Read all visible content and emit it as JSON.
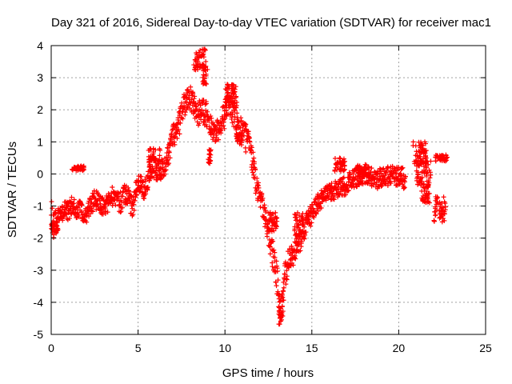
{
  "chart_data": {
    "type": "scatter",
    "title": "Day 321 of 2016, Sidereal Day-to-day VTEC variation (SDTVAR) for receiver mac1",
    "xlabel": "GPS time / hours",
    "ylabel": "SDTVAR / TECUs",
    "xlim": [
      0,
      25
    ],
    "ylim": [
      -5,
      4
    ],
    "xticks": [
      "0",
      "5",
      "10",
      "15",
      "20",
      "25"
    ],
    "yticks": [
      "-5",
      "-4",
      "-3",
      "-2",
      "-1",
      "0",
      "1",
      "2",
      "3",
      "4"
    ],
    "grid": true,
    "marker": "plus",
    "series_color": "#ff0000",
    "series": [
      {
        "name": "SDTVAR",
        "trace": [
          [
            0.0,
            -1.2,
            0.45
          ],
          [
            0.1,
            -1.5,
            0.5
          ],
          [
            0.2,
            -1.6,
            0.4
          ],
          [
            0.4,
            -1.3,
            0.35
          ],
          [
            0.6,
            -1.2,
            0.3
          ],
          [
            0.8,
            -1.1,
            0.3
          ],
          [
            1.0,
            -1.2,
            0.3
          ],
          [
            1.2,
            -1.0,
            0.3
          ],
          [
            1.4,
            -1.1,
            0.3
          ],
          [
            1.6,
            -1.1,
            0.3
          ],
          [
            1.8,
            -1.2,
            0.25
          ],
          [
            2.0,
            -1.3,
            0.25
          ],
          [
            2.2,
            -1.0,
            0.3
          ],
          [
            2.5,
            -0.8,
            0.3
          ],
          [
            2.8,
            -0.9,
            0.3
          ],
          [
            3.0,
            -1.0,
            0.3
          ],
          [
            3.3,
            -0.9,
            0.3
          ],
          [
            3.5,
            -0.7,
            0.3
          ],
          [
            3.8,
            -0.8,
            0.3
          ],
          [
            4.0,
            -0.9,
            0.35
          ],
          [
            4.3,
            -0.6,
            0.35
          ],
          [
            4.5,
            -0.8,
            0.35
          ],
          [
            4.7,
            -1.1,
            0.4
          ],
          [
            4.9,
            -0.4,
            0.3
          ],
          [
            5.1,
            -0.3,
            0.3
          ],
          [
            5.4,
            -0.5,
            0.35
          ],
          [
            5.6,
            -0.1,
            0.3
          ],
          [
            5.8,
            0.3,
            0.3
          ],
          [
            6.0,
            0.2,
            0.3
          ],
          [
            6.2,
            0.1,
            0.35
          ],
          [
            6.5,
            0.2,
            0.3
          ],
          [
            6.8,
            0.7,
            0.35
          ],
          [
            7.0,
            1.2,
            0.35
          ],
          [
            7.3,
            1.4,
            0.4
          ],
          [
            7.5,
            2.0,
            0.4
          ],
          [
            7.8,
            2.3,
            0.4
          ],
          [
            8.0,
            2.4,
            0.35
          ],
          [
            8.2,
            2.1,
            0.4
          ],
          [
            8.5,
            1.9,
            0.4
          ],
          [
            8.8,
            2.0,
            0.45
          ],
          [
            9.0,
            1.8,
            0.4
          ],
          [
            9.2,
            1.4,
            0.35
          ],
          [
            9.4,
            1.3,
            0.3
          ],
          [
            9.6,
            1.4,
            0.35
          ],
          [
            9.8,
            1.6,
            0.4
          ],
          [
            10.0,
            1.9,
            0.45
          ],
          [
            10.2,
            2.2,
            0.35
          ],
          [
            10.4,
            2.0,
            0.4
          ],
          [
            10.6,
            1.8,
            0.45
          ],
          [
            10.8,
            1.5,
            0.4
          ],
          [
            11.0,
            1.3,
            0.4
          ],
          [
            11.2,
            1.1,
            0.45
          ],
          [
            11.4,
            0.9,
            0.4
          ],
          [
            11.6,
            0.4,
            0.35
          ],
          [
            11.8,
            -0.3,
            0.4
          ],
          [
            12.0,
            -0.7,
            0.35
          ],
          [
            12.2,
            -1.1,
            0.35
          ],
          [
            12.4,
            -1.6,
            0.35
          ],
          [
            12.6,
            -2.1,
            0.4
          ],
          [
            12.8,
            -2.6,
            0.45
          ],
          [
            13.0,
            -3.3,
            0.5
          ],
          [
            13.1,
            -4.0,
            0.4
          ],
          [
            13.2,
            -4.3,
            0.35
          ],
          [
            13.35,
            -3.6,
            0.45
          ],
          [
            13.5,
            -3.0,
            0.45
          ],
          [
            13.7,
            -2.6,
            0.4
          ],
          [
            13.9,
            -2.5,
            0.4
          ],
          [
            14.1,
            -2.3,
            0.4
          ],
          [
            14.3,
            -2.1,
            0.4
          ],
          [
            14.5,
            -1.8,
            0.4
          ],
          [
            14.7,
            -1.5,
            0.35
          ],
          [
            14.9,
            -1.3,
            0.35
          ],
          [
            15.1,
            -1.1,
            0.3
          ],
          [
            15.4,
            -0.9,
            0.3
          ],
          [
            15.7,
            -0.7,
            0.3
          ],
          [
            16.0,
            -0.6,
            0.3
          ],
          [
            16.3,
            -0.5,
            0.3
          ],
          [
            16.6,
            -0.4,
            0.3
          ],
          [
            16.9,
            -0.4,
            0.3
          ],
          [
            17.2,
            -0.2,
            0.3
          ],
          [
            17.5,
            -0.1,
            0.3
          ],
          [
            17.8,
            -0.1,
            0.3
          ],
          [
            18.1,
            0.0,
            0.3
          ],
          [
            18.4,
            -0.1,
            0.3
          ],
          [
            18.7,
            -0.2,
            0.3
          ],
          [
            19.0,
            -0.1,
            0.3
          ],
          [
            19.3,
            -0.1,
            0.3
          ],
          [
            19.6,
            0.0,
            0.3
          ],
          [
            19.9,
            -0.1,
            0.3
          ],
          [
            20.2,
            0.0,
            0.3
          ],
          [
            20.4,
            -0.4,
            0.3
          ]
        ],
        "clusters": [
          {
            "x": [
              1.2,
              1.9
            ],
            "y": [
              0.1,
              0.25
            ]
          },
          {
            "x": [
              0.0,
              0.4
            ],
            "y": [
              -1.9,
              -1.5
            ]
          },
          {
            "x": [
              5.6,
              6.3
            ],
            "y": [
              -0.2,
              0.8
            ]
          },
          {
            "x": [
              8.2,
              8.9
            ],
            "y": [
              3.2,
              3.9
            ]
          },
          {
            "x": [
              8.7,
              9.0
            ],
            "y": [
              2.8,
              3.4
            ]
          },
          {
            "x": [
              9.0,
              9.2
            ],
            "y": [
              0.3,
              0.8
            ]
          },
          {
            "x": [
              10.0,
              10.7
            ],
            "y": [
              2.2,
              2.8
            ]
          },
          {
            "x": [
              10.6,
              11.0
            ],
            "y": [
              0.9,
              1.3
            ]
          },
          {
            "x": [
              12.5,
              13.0
            ],
            "y": [
              -1.8,
              -1.2
            ]
          },
          {
            "x": [
              13.1,
              13.35
            ],
            "y": [
              -4.7,
              -4.1
            ]
          },
          {
            "x": [
              14.0,
              14.5
            ],
            "y": [
              -2.0,
              -1.2
            ]
          },
          {
            "x": [
              16.3,
              16.9
            ],
            "y": [
              0.0,
              0.5
            ]
          },
          {
            "x": [
              17.6,
              18.3
            ],
            "y": [
              -0.1,
              0.3
            ]
          },
          {
            "x": [
              20.8,
              21.6
            ],
            "y": [
              0.3,
              1.0
            ]
          },
          {
            "x": [
              21.0,
              21.9
            ],
            "y": [
              -0.4,
              0.4
            ]
          },
          {
            "x": [
              21.3,
              21.8
            ],
            "y": [
              -0.9,
              -0.4
            ]
          },
          {
            "x": [
              22.1,
              22.8
            ],
            "y": [
              0.4,
              0.6
            ]
          },
          {
            "x": [
              22.0,
              22.7
            ],
            "y": [
              -1.5,
              -0.7
            ]
          }
        ]
      }
    ]
  }
}
